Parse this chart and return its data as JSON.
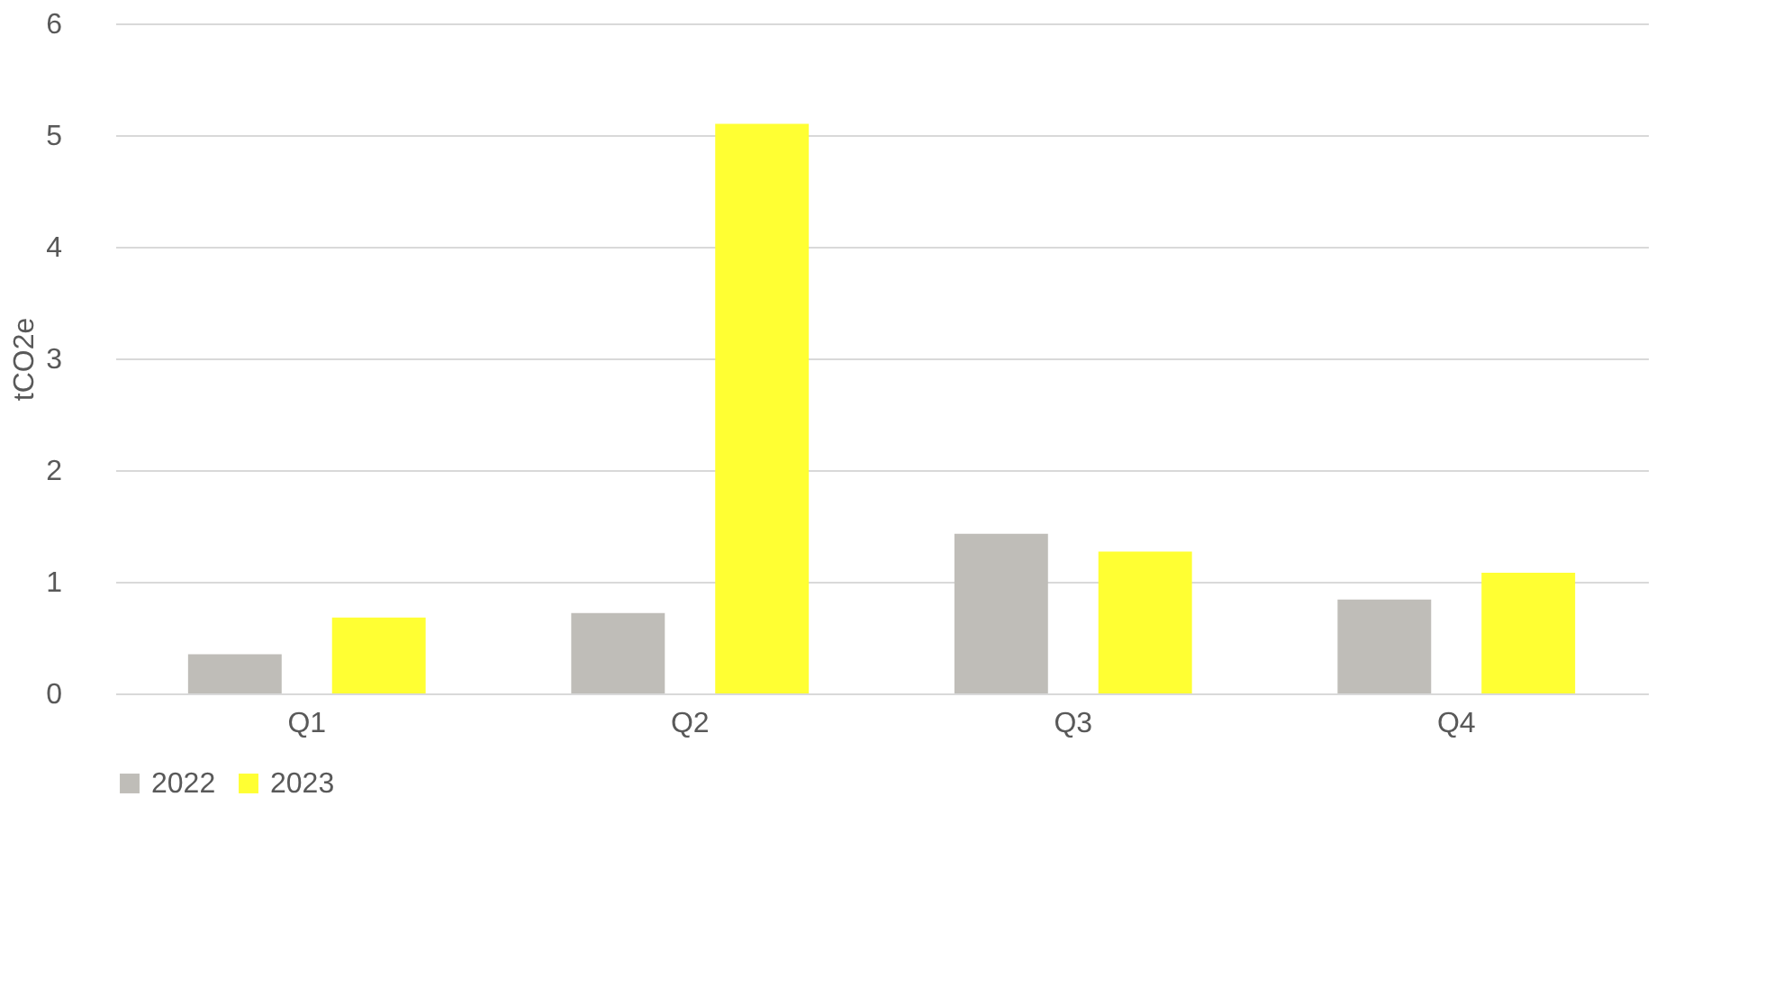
{
  "chart_data": {
    "type": "bar",
    "ylabel": "tCO2e",
    "categories": [
      "Q1",
      "Q2",
      "Q3",
      "Q4"
    ],
    "series": [
      {
        "name": "2022",
        "color": "#bfbdb8",
        "values": [
          0.35,
          0.72,
          1.43,
          0.84
        ]
      },
      {
        "name": "2023",
        "color": "#ffff33",
        "values": [
          0.68,
          5.1,
          1.27,
          1.08
        ]
      }
    ],
    "ylim": [
      0,
      6
    ],
    "yticks": [
      0,
      1,
      2,
      3,
      4,
      5,
      6
    ],
    "grid": "y",
    "legend": "bottom"
  }
}
